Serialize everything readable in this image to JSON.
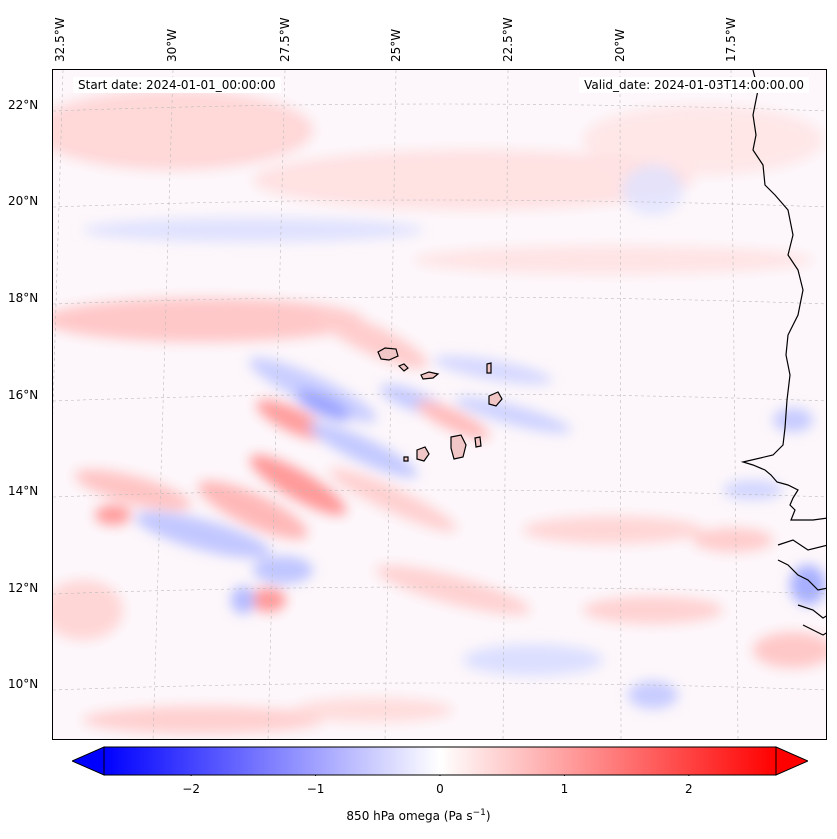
{
  "map": {
    "start_date": "Start date: 2024-01-01_00:00:00",
    "valid_date": "Valid_date: 2024-01-03T14:00:00.00",
    "lon_labels": [
      "32.5°W",
      "30°W",
      "27.5°W",
      "25°W",
      "22.5°W",
      "20°W",
      "17.5°W"
    ],
    "lat_labels": [
      "22°N",
      "20°N",
      "18°N",
      "16°N",
      "14°N",
      "12°N",
      "10°N"
    ],
    "field": "850 hPa omega",
    "colors": {
      "positive": "#ff0000",
      "negative": "#0000ff",
      "neutral": "#ffffff",
      "coast": "#000000",
      "grid": "#bbbbbb"
    }
  },
  "colorbar": {
    "title_text": "850 hPa omega (Pa s",
    "title_exp": "−1",
    "title_close": ")",
    "min": -2.7,
    "max": 2.7,
    "ticks": [
      {
        "value": -2,
        "label": "−2"
      },
      {
        "value": -1,
        "label": "−1"
      },
      {
        "value": 0,
        "label": "0"
      },
      {
        "value": 1,
        "label": "1"
      },
      {
        "value": 2,
        "label": "2"
      }
    ]
  }
}
